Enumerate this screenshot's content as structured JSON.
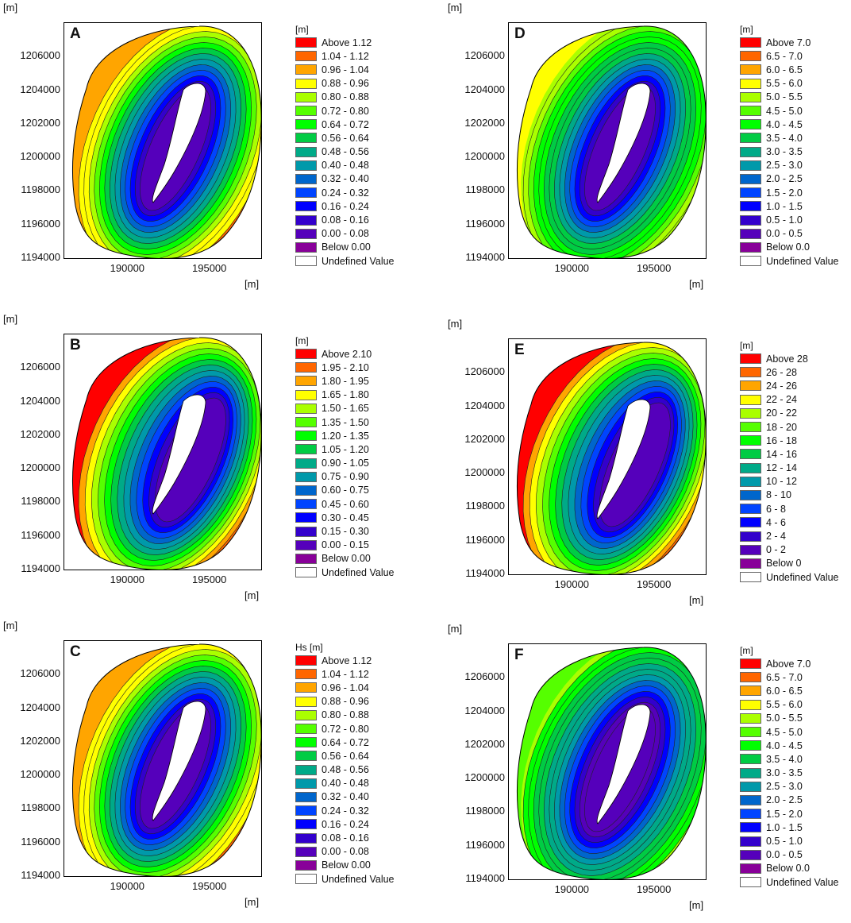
{
  "axis_unit": "[m]",
  "chart_data": [
    {
      "type": "heatmap",
      "panel": "A",
      "unit_label": "[m]",
      "x_ticks": [
        "190000",
        "195000"
      ],
      "y_ticks": [
        "1206000",
        "1204000",
        "1202000",
        "1200000",
        "1198000",
        "1196000",
        "1194000"
      ],
      "xlim": [
        186000,
        198000
      ],
      "ylim": [
        1194000,
        1208000
      ],
      "scheme": "sym",
      "legend": [
        "Above 1.12",
        "1.04 - 1.12",
        "0.96 - 1.04",
        "0.88 - 0.96",
        "0.80 - 0.88",
        "0.72 - 0.80",
        "0.64 - 0.72",
        "0.56 - 0.64",
        "0.48 - 0.56",
        "0.40 - 0.48",
        "0.32 - 0.40",
        "0.24 - 0.32",
        "0.16 - 0.24",
        "0.08 - 0.16",
        "0.00 - 0.08",
        "Below 0.00",
        "Undefined Value"
      ]
    },
    {
      "type": "heatmap",
      "panel": "B",
      "unit_label": "[m]",
      "x_ticks": [
        "190000",
        "195000"
      ],
      "y_ticks": [
        "1206000",
        "1204000",
        "1202000",
        "1200000",
        "1198000",
        "1196000",
        "1194000"
      ],
      "xlim": [
        186000,
        198000
      ],
      "ylim": [
        1194000,
        1208000
      ],
      "scheme": "west",
      "legend": [
        "Above 2.10",
        "1.95 - 2.10",
        "1.80 - 1.95",
        "1.65 - 1.80",
        "1.50 - 1.65",
        "1.35 - 1.50",
        "1.20 - 1.35",
        "1.05 - 1.20",
        "0.90 - 1.05",
        "0.75 - 0.90",
        "0.60 - 0.75",
        "0.45 - 0.60",
        "0.30 - 0.45",
        "0.15 - 0.30",
        "0.00 - 0.15",
        "Below 0.00",
        "Undefined Value"
      ]
    },
    {
      "type": "heatmap",
      "panel": "C",
      "unit_label": "Hs [m]",
      "x_ticks": [
        "190000",
        "195000"
      ],
      "y_ticks": [
        "1206000",
        "1204000",
        "1202000",
        "1200000",
        "1198000",
        "1196000",
        "1194000"
      ],
      "xlim": [
        186000,
        198000
      ],
      "ylim": [
        1194000,
        1208000
      ],
      "scheme": "sym",
      "legend": [
        "Above 1.12",
        "1.04 - 1.12",
        "0.96 - 1.04",
        "0.88 - 0.96",
        "0.80 - 0.88",
        "0.72 - 0.80",
        "0.64 - 0.72",
        "0.56 - 0.64",
        "0.48 - 0.56",
        "0.40 - 0.48",
        "0.32 - 0.40",
        "0.24 - 0.32",
        "0.16 - 0.24",
        "0.08 - 0.16",
        "0.00 - 0.08",
        "Below 0.00",
        "Undefined Value"
      ]
    },
    {
      "type": "heatmap",
      "panel": "D",
      "unit_label": "[m]",
      "x_ticks": [
        "190000",
        "195000"
      ],
      "y_ticks": [
        "1206000",
        "1204000",
        "1202000",
        "1200000",
        "1198000",
        "1196000",
        "1194000"
      ],
      "xlim": [
        186000,
        198000
      ],
      "ylim": [
        1194000,
        1208000
      ],
      "scheme": "green",
      "legend": [
        "Above 7.0",
        "6.5 - 7.0",
        "6.0 - 6.5",
        "5.5 - 6.0",
        "5.0 - 5.5",
        "4.5 - 5.0",
        "4.0 - 4.5",
        "3.5 - 4.0",
        "3.0 - 3.5",
        "2.5 - 3.0",
        "2.0 - 2.5",
        "1.5 - 2.0",
        "1.0 - 1.5",
        "0.5 - 1.0",
        "0.0 - 0.5",
        "Below 0.0",
        "Undefined Value"
      ]
    },
    {
      "type": "heatmap",
      "panel": "E",
      "unit_label": "[m]",
      "x_ticks": [
        "190000",
        "195000"
      ],
      "y_ticks": [
        "1206000",
        "1204000",
        "1202000",
        "1200000",
        "1198000",
        "1196000",
        "1194000"
      ],
      "xlim": [
        186000,
        198000
      ],
      "ylim": [
        1194000,
        1208000
      ],
      "scheme": "west",
      "legend": [
        "Above 28",
        "26 - 28",
        "24 - 26",
        "22 - 24",
        "20 - 22",
        "18 - 20",
        "16 - 18",
        "14 - 16",
        "12 - 14",
        "10 - 12",
        "8 - 10",
        "6 - 8",
        "4 - 6",
        "2 - 4",
        "0 - 2",
        "Below 0",
        "Undefined Value"
      ]
    },
    {
      "type": "heatmap",
      "panel": "F",
      "unit_label": "[m]",
      "x_ticks": [
        "190000",
        "195000"
      ],
      "y_ticks": [
        "1206000",
        "1204000",
        "1202000",
        "1200000",
        "1198000",
        "1196000",
        "1194000"
      ],
      "xlim": [
        186000,
        198000
      ],
      "ylim": [
        1194000,
        1208000
      ],
      "scheme": "green2",
      "legend": [
        "Above 7.0",
        "6.5 - 7.0",
        "6.0 - 6.5",
        "5.5 - 6.0",
        "5.0 - 5.5",
        "4.5 - 5.0",
        "4.0 - 4.5",
        "3.5 - 4.0",
        "3.0 - 3.5",
        "2.5 - 3.0",
        "2.0 - 2.5",
        "1.5 - 2.0",
        "1.0 - 1.5",
        "0.5 - 1.0",
        "0.0 - 0.5",
        "Below 0.0",
        "Undefined Value"
      ]
    }
  ],
  "palette": [
    "#ff0000",
    "#ff6600",
    "#ffa500",
    "#ffff00",
    "#aaff00",
    "#55ff00",
    "#00ff00",
    "#00cc44",
    "#00aa88",
    "#0099aa",
    "#0066cc",
    "#0044ff",
    "#0000ff",
    "#3300cc",
    "#5500bb",
    "#880099",
    "#ffffff"
  ]
}
